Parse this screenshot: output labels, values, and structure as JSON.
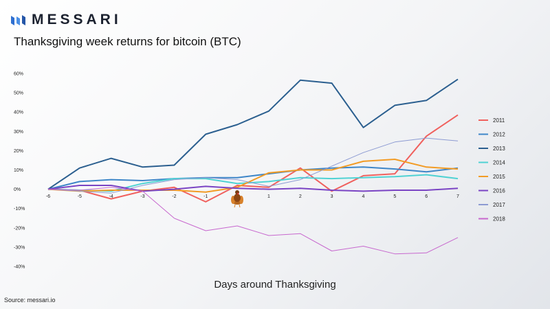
{
  "brand": {
    "name": "MESSARI"
  },
  "chart_title": "Thanksgiving week returns for bitcoin (BTC)",
  "source": "Source: messari.io",
  "colors": {
    "2011": "#f0605d",
    "2012": "#3e86c8",
    "2013": "#2b5f8f",
    "2014": "#4fd2d3",
    "2015": "#f29b24",
    "2016": "#7a44c4",
    "2017": "#8c9ad2",
    "2018": "#c767ce"
  },
  "chart_data": {
    "type": "line",
    "title": "Thanksgiving week returns for bitcoin (BTC)",
    "xlabel": "Days around Thanksgiving",
    "ylabel": "",
    "x": [
      -6,
      -5,
      -4,
      -3,
      -2,
      -1,
      0,
      1,
      2,
      3,
      4,
      5,
      6,
      7
    ],
    "x_tick_labels": [
      "-6",
      "-5",
      "-4",
      "-3",
      "-2",
      "-1",
      "",
      "1",
      "2",
      "3",
      "4",
      "5",
      "6",
      "7"
    ],
    "ylim": [
      -40,
      60
    ],
    "y_ticks": [
      60,
      50,
      40,
      30,
      20,
      10,
      0,
      -10,
      -20,
      -30,
      -40
    ],
    "y_tick_labels": [
      "60%",
      "50%",
      "40%",
      "30%",
      "20%",
      "10%",
      "0%",
      "-10%",
      "-20%",
      "-30%",
      "-40%"
    ],
    "grid": false,
    "legend_position": "right",
    "annotation": "turkey icon at day 0",
    "series": [
      {
        "name": "2011",
        "values": [
          0,
          -0.5,
          -5,
          -1,
          1,
          -6.5,
          2,
          1,
          11,
          -1,
          7,
          8,
          27.5,
          38.5
        ]
      },
      {
        "name": "2012",
        "values": [
          0,
          4,
          5,
          4.5,
          5.5,
          6,
          6,
          8,
          10,
          11,
          11.5,
          10.5,
          9,
          11
        ]
      },
      {
        "name": "2013",
        "values": [
          0,
          11,
          16,
          11.5,
          12.5,
          28.5,
          33.5,
          40.5,
          56.5,
          55,
          32,
          43.5,
          46,
          57
        ]
      },
      {
        "name": "2014",
        "values": [
          0,
          -0.5,
          -1,
          3,
          5.5,
          5.5,
          3,
          4,
          6,
          5.5,
          6,
          6.5,
          7.5,
          5.5
        ]
      },
      {
        "name": "2015",
        "values": [
          0,
          -1,
          -0.5,
          -0.5,
          -0.5,
          -1.5,
          1,
          8.5,
          10,
          10,
          14.5,
          15.5,
          11.5,
          10.5
        ]
      },
      {
        "name": "2016",
        "values": [
          0,
          2,
          2,
          -1,
          0,
          1.5,
          0.5,
          0,
          0.5,
          -0.5,
          -1,
          -0.5,
          -0.5,
          0.5
        ]
      },
      {
        "name": "2017",
        "values": [
          0,
          -1,
          -2,
          2,
          5,
          6,
          5,
          1.5,
          5,
          12,
          19,
          24.5,
          26.5,
          25
        ]
      },
      {
        "name": "2018",
        "values": [
          0,
          -0.5,
          1,
          -1,
          -15,
          -21.5,
          -19,
          -24,
          -23,
          -32,
          -29.5,
          -33.5,
          -33,
          -25
        ]
      }
    ]
  }
}
